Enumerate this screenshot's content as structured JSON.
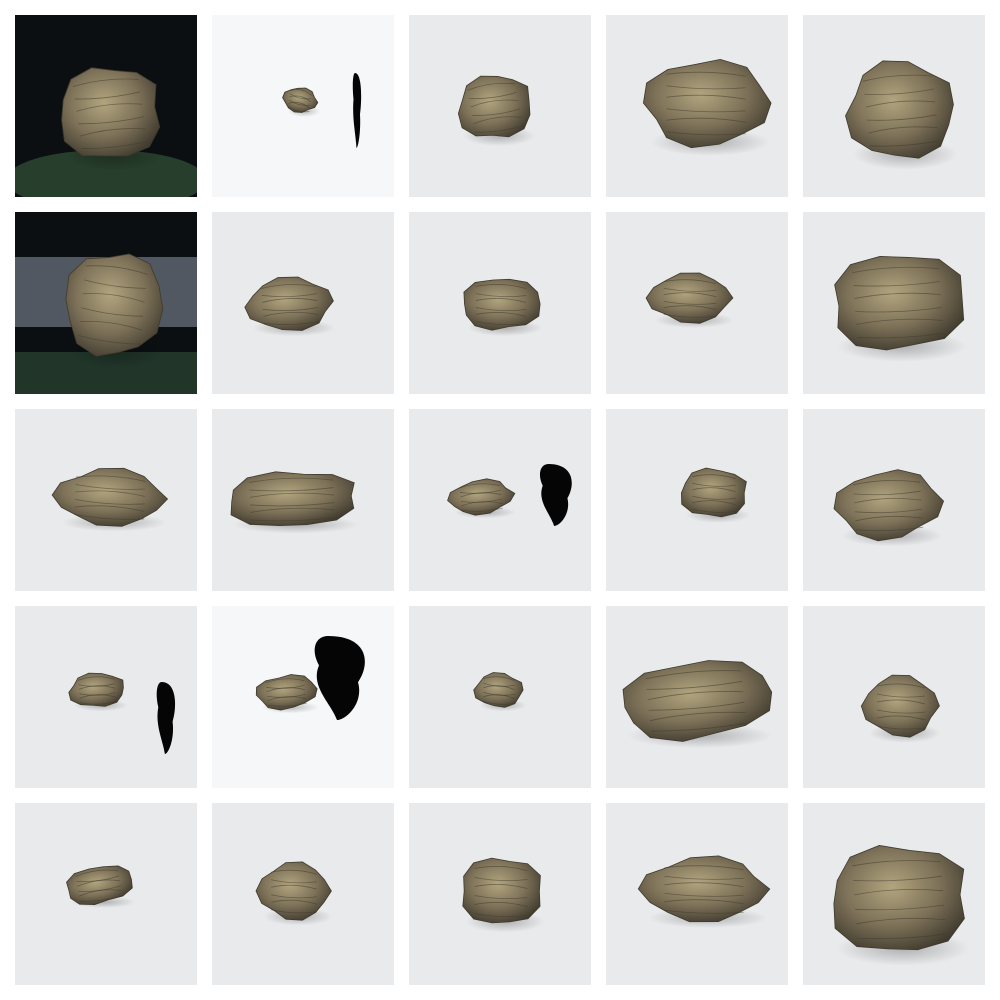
{
  "grid": {
    "rows": 5,
    "columns": 5,
    "tiles": [
      {
        "background": "dark-green",
        "subject": "rock",
        "artifact": "none"
      },
      {
        "background": "white",
        "subject": "small-rock",
        "artifact": "dark-streak"
      },
      {
        "background": "light-gray",
        "subject": "rock",
        "artifact": "none"
      },
      {
        "background": "light-gray",
        "subject": "large-rock",
        "artifact": "none"
      },
      {
        "background": "light-gray",
        "subject": "large-rock",
        "artifact": "none"
      },
      {
        "background": "dark-foggy",
        "subject": "rock",
        "artifact": "none"
      },
      {
        "background": "light-gray",
        "subject": "rock",
        "artifact": "none"
      },
      {
        "background": "light-gray",
        "subject": "rock",
        "artifact": "none"
      },
      {
        "background": "light-gray",
        "subject": "rock",
        "artifact": "none"
      },
      {
        "background": "light-gray",
        "subject": "large-rock",
        "artifact": "none"
      },
      {
        "background": "light-gray",
        "subject": "rock",
        "artifact": "none"
      },
      {
        "background": "light-gray",
        "subject": "wide-rock",
        "artifact": "none"
      },
      {
        "background": "light-gray",
        "subject": "small-rock",
        "artifact": "black-blob"
      },
      {
        "background": "light-gray",
        "subject": "small-rock",
        "artifact": "none"
      },
      {
        "background": "light-gray",
        "subject": "rock",
        "artifact": "none"
      },
      {
        "background": "light-gray",
        "subject": "small-rock",
        "artifact": "black-streak"
      },
      {
        "background": "white",
        "subject": "small-rock",
        "artifact": "large-black-blob"
      },
      {
        "background": "light-gray",
        "subject": "small-rock",
        "artifact": "none"
      },
      {
        "background": "light-gray",
        "subject": "large-rock",
        "artifact": "none"
      },
      {
        "background": "light-gray",
        "subject": "rock",
        "artifact": "none"
      },
      {
        "background": "light-gray",
        "subject": "small-rock",
        "artifact": "none"
      },
      {
        "background": "light-gray",
        "subject": "rock",
        "artifact": "none"
      },
      {
        "background": "light-gray",
        "subject": "rock",
        "artifact": "none"
      },
      {
        "background": "light-gray",
        "subject": "rock",
        "artifact": "none"
      },
      {
        "background": "light-gray",
        "subject": "large-rock",
        "artifact": "none"
      }
    ]
  },
  "colors": {
    "page": "#ffffff",
    "tile_light": "#e9eaec",
    "tile_white": "#f6f7f8",
    "tile_dark": "#0b0f12",
    "rock_base": "#7d7158",
    "rock_shadow": "#3f3a2e",
    "rock_highlight": "#b1a57f",
    "artifact": "#050505"
  }
}
